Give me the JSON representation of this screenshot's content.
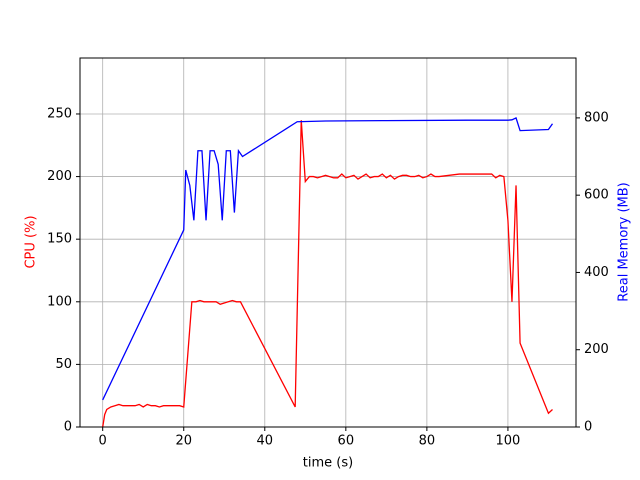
{
  "chart_data": {
    "type": "line",
    "xlabel": "time (s)",
    "ylabel": "CPU (%)",
    "y2label": "Real Memory (MB)",
    "xlim": [
      -5.6,
      116.8
    ],
    "xticks": [
      0,
      20,
      40,
      60,
      80,
      100
    ],
    "ylim": [
      0,
      294.7
    ],
    "yticks": [
      0,
      50,
      100,
      150,
      200,
      250
    ],
    "y2lim": [
      0,
      955
    ],
    "y2ticks": [
      0,
      200,
      400,
      600,
      800
    ],
    "grid": true,
    "series": [
      {
        "color": "#ff0000",
        "axis": "y",
        "x": [
          0,
          0.5,
          1,
          2,
          3,
          4,
          5,
          6,
          7,
          8,
          9,
          10,
          11,
          12,
          13,
          14,
          15,
          16,
          17,
          18,
          19,
          20,
          22,
          23,
          24,
          25,
          26,
          27,
          28,
          29,
          30,
          31,
          32,
          33,
          34,
          47.5,
          49,
          50,
          51,
          52,
          53,
          54,
          55,
          56,
          57,
          58,
          59,
          60,
          61,
          62,
          63,
          64,
          65,
          66,
          67,
          68,
          69,
          70,
          71,
          72,
          73,
          74,
          75,
          76,
          77,
          78,
          79,
          80,
          81,
          82,
          83,
          88,
          96,
          97,
          98,
          99,
          100,
          101,
          102,
          103,
          110,
          111
        ],
        "values": [
          0,
          10,
          14,
          16,
          17,
          18,
          17,
          17,
          17,
          17,
          18,
          16,
          18,
          17,
          17,
          16,
          17,
          17,
          17,
          17,
          17,
          16,
          100,
          100,
          101,
          100,
          100,
          100,
          100,
          98,
          99,
          100,
          101,
          100,
          100,
          16,
          245,
          196,
          200,
          200,
          199,
          200,
          201,
          200,
          199,
          199,
          202,
          199,
          200,
          201,
          198,
          200,
          202,
          199,
          200,
          200,
          202,
          199,
          201,
          198,
          200,
          201,
          201,
          200,
          200,
          201,
          199,
          200,
          202,
          200,
          200,
          202,
          202,
          199,
          201,
          200,
          165,
          100,
          193,
          67,
          11,
          14
        ]
      },
      {
        "color": "#0000ff",
        "axis": "y2",
        "x": [
          0,
          20,
          20.5,
          21.5,
          22.5,
          23.5,
          24.5,
          25.5,
          26.5,
          27.5,
          28.5,
          29.5,
          30.5,
          31.5,
          32.5,
          33.5,
          34.5,
          48,
          55,
          70,
          90,
          100,
          101,
          102,
          103,
          110,
          111
        ],
        "values": [
          70,
          510,
          665,
          625,
          535,
          715,
          715,
          535,
          715,
          715,
          680,
          535,
          715,
          715,
          555,
          715,
          700,
          790,
          792,
          793,
          794,
          794,
          795,
          800,
          767,
          770,
          785
        ]
      }
    ]
  }
}
